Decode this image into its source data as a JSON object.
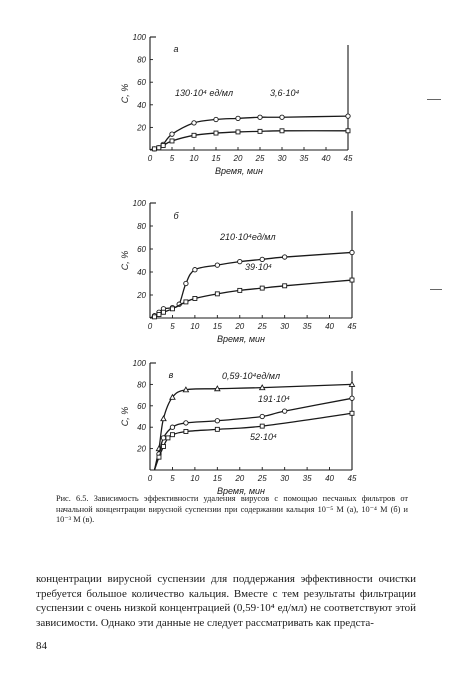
{
  "chart_data": [
    {
      "type": "line",
      "panel_letter": "а",
      "xlabel": "Время, мин",
      "ylabel": "C, %",
      "xlim": [
        0,
        45
      ],
      "ylim": [
        0,
        100
      ],
      "x_ticks": [
        0,
        5,
        10,
        15,
        20,
        25,
        30,
        35,
        40,
        45
      ],
      "y_ticks": [
        20,
        40,
        60,
        80,
        100
      ],
      "grid": false,
      "series": [
        {
          "label": "130·10⁴ ед/мл",
          "marker": "circle",
          "points": [
            [
              0,
              0
            ],
            [
              1,
              1
            ],
            [
              2,
              2
            ],
            [
              3,
              5
            ],
            [
              5,
              14
            ],
            [
              10,
              24
            ],
            [
              15,
              27
            ],
            [
              20,
              28
            ],
            [
              25,
              29
            ],
            [
              30,
              29
            ],
            [
              45,
              30
            ]
          ]
        },
        {
          "label": "3,6·10⁴",
          "marker": "square",
          "points": [
            [
              0,
              0
            ],
            [
              1,
              1
            ],
            [
              2,
              2
            ],
            [
              3,
              4
            ],
            [
              5,
              8
            ],
            [
              10,
              13
            ],
            [
              15,
              15
            ],
            [
              20,
              16
            ],
            [
              25,
              16.5
            ],
            [
              30,
              17
            ],
            [
              45,
              17
            ]
          ]
        }
      ]
    },
    {
      "type": "line",
      "panel_letter": "б",
      "xlabel": "Время, мин",
      "ylabel": "C, %",
      "xlim": [
        0,
        45
      ],
      "ylim": [
        0,
        100
      ],
      "x_ticks": [
        0,
        5,
        10,
        15,
        20,
        25,
        30,
        35,
        40,
        45
      ],
      "y_ticks": [
        20,
        40,
        60,
        80,
        100
      ],
      "grid": false,
      "series": [
        {
          "label": "210·10⁴ед/мл",
          "marker": "circle",
          "points": [
            [
              0,
              0
            ],
            [
              1,
              2
            ],
            [
              2,
              5
            ],
            [
              3,
              8
            ],
            [
              5,
              9
            ],
            [
              6.5,
              12
            ],
            [
              8,
              30
            ],
            [
              10,
              42
            ],
            [
              15,
              46
            ],
            [
              20,
              49
            ],
            [
              25,
              51
            ],
            [
              30,
              53
            ],
            [
              45,
              57
            ]
          ]
        },
        {
          "label": "39·10⁴",
          "marker": "square",
          "points": [
            [
              0,
              0
            ],
            [
              1,
              1
            ],
            [
              2,
              3
            ],
            [
              3,
              5
            ],
            [
              5,
              8
            ],
            [
              8,
              14
            ],
            [
              10,
              17
            ],
            [
              15,
              21
            ],
            [
              20,
              24
            ],
            [
              25,
              26
            ],
            [
              30,
              28
            ],
            [
              45,
              33
            ]
          ]
        }
      ]
    },
    {
      "type": "line",
      "panel_letter": "в",
      "xlabel": "Время, мин",
      "ylabel": "C, %",
      "xlim": [
        0,
        45
      ],
      "ylim": [
        0,
        100
      ],
      "x_ticks": [
        0,
        5,
        10,
        15,
        20,
        25,
        30,
        35,
        40,
        45
      ],
      "y_ticks": [
        20,
        40,
        60,
        80,
        100
      ],
      "grid": false,
      "series": [
        {
          "label": "0,59·10⁴ед/мл",
          "marker": "triangle",
          "points": [
            [
              1,
              0
            ],
            [
              2,
              20
            ],
            [
              3,
              48
            ],
            [
              5,
              68
            ],
            [
              8,
              75
            ],
            [
              15,
              76
            ],
            [
              25,
              77
            ],
            [
              45,
              80
            ]
          ]
        },
        {
          "label": "191·10⁴",
          "marker": "circle",
          "points": [
            [
              1,
              0
            ],
            [
              2,
              15
            ],
            [
              3,
              30
            ],
            [
              5,
              40
            ],
            [
              8,
              44
            ],
            [
              15,
              46
            ],
            [
              25,
              50
            ],
            [
              30,
              55
            ],
            [
              45,
              67
            ]
          ]
        },
        {
          "label": "52·10⁴",
          "marker": "square",
          "points": [
            [
              1,
              0
            ],
            [
              2,
              12
            ],
            [
              3,
              22
            ],
            [
              4,
              30
            ],
            [
              5,
              33
            ],
            [
              8,
              36
            ],
            [
              15,
              38
            ],
            [
              25,
              41
            ],
            [
              45,
              53
            ]
          ]
        }
      ]
    }
  ],
  "caption": {
    "number": "Рис. 6.5.",
    "text": "Зависимость эффективности удаления вирусов с помощью песчаных фильтров от начальной концентрации вирусной суспензии при содержании кальция 10⁻⁵ М (а), 10⁻⁴ М (б) и 10⁻³ М (в)."
  },
  "body_text": "концентрации вирусной суспензии для поддержания эффективности очистки требуется большое количество кальция. Вместе с тем результаты фильтрации суспензии с очень низкой концентрацией (0,59·10⁴ ед/мл) не соответствуют этой зависимости. Однако эти данные не следует рассматривать как предста-",
  "page_number": "84"
}
